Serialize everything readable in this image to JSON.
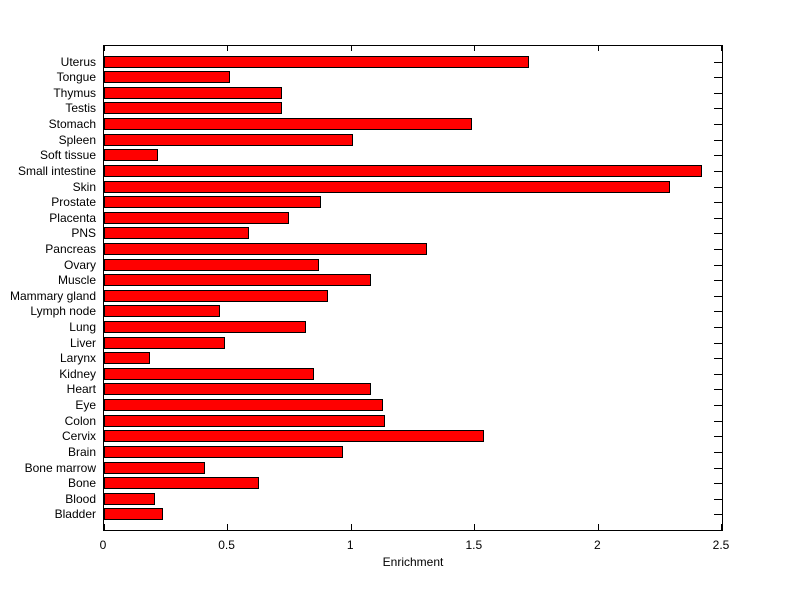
{
  "chart_data": {
    "type": "bar",
    "orientation": "horizontal",
    "title": "",
    "xlabel": "Enrichment",
    "ylabel": "",
    "xlim": [
      0,
      2.5
    ],
    "xticks": [
      0,
      0.5,
      1,
      1.5,
      2,
      2.5
    ],
    "xtick_labels": [
      "0",
      "0.5",
      "1",
      "1.5",
      "2",
      "2.5"
    ],
    "grid": false,
    "legend": false,
    "bar_color": "#ff0000",
    "bar_border_color": "#000000",
    "axis_color": "#000000",
    "background_color": "#ffffff",
    "categories": [
      "Uterus",
      "Tongue",
      "Thymus",
      "Testis",
      "Stomach",
      "Spleen",
      "Soft tissue",
      "Small intestine",
      "Skin",
      "Prostate",
      "Placenta",
      "PNS",
      "Pancreas",
      "Ovary",
      "Muscle",
      "Mammary gland",
      "Lymph node",
      "Lung",
      "Liver",
      "Larynx",
      "Kidney",
      "Heart",
      "Eye",
      "Colon",
      "Cervix",
      "Brain",
      "Bone marrow",
      "Bone",
      "Blood",
      "Bladder"
    ],
    "values": [
      1.71,
      0.5,
      0.71,
      0.71,
      1.48,
      1.0,
      0.21,
      2.41,
      2.28,
      0.87,
      0.74,
      0.58,
      1.3,
      0.86,
      1.07,
      0.9,
      0.46,
      0.81,
      0.48,
      0.18,
      0.84,
      1.07,
      1.12,
      1.13,
      1.53,
      0.96,
      0.4,
      0.62,
      0.2,
      0.23
    ]
  }
}
